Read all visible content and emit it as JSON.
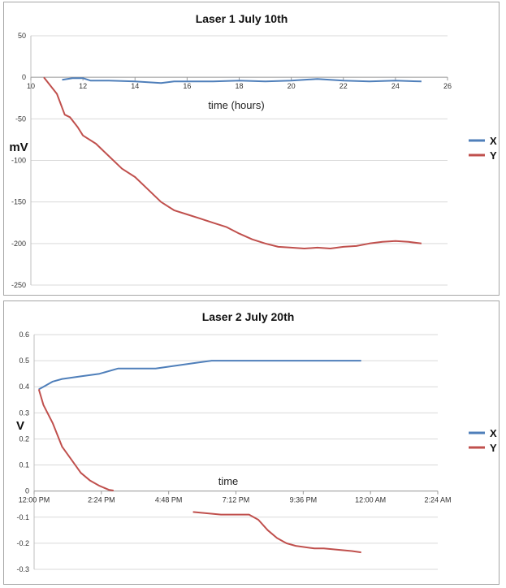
{
  "chart_data": [
    {
      "type": "line",
      "title": "Laser 1 July 10th",
      "ylabel": "mV",
      "xlabel": "time (hours)",
      "ylim": [
        -250,
        50
      ],
      "yticks": [
        50,
        0,
        -50,
        -100,
        -150,
        -200,
        -250
      ],
      "xlim": [
        10,
        26
      ],
      "xticks": [
        10,
        12,
        14,
        16,
        18,
        20,
        22,
        24,
        26
      ],
      "legend": "right",
      "colors": {
        "X": "#4f7fba",
        "Y": "#c0504d"
      },
      "series": [
        {
          "name": "X",
          "x": [
            11.2,
            11.6,
            12.0,
            12.3,
            13.0,
            14.0,
            15.0,
            15.5,
            16.0,
            17.0,
            18.0,
            19.0,
            20.0,
            21.0,
            22.0,
            23.0,
            24.0,
            25.0
          ],
          "y": [
            -3,
            -1,
            -1,
            -4,
            -4,
            -5,
            -7,
            -5,
            -5,
            -5,
            -4,
            -5,
            -4,
            -2,
            -4,
            -5,
            -4,
            -5
          ]
        },
        {
          "name": "Y",
          "x": [
            10.5,
            11.0,
            11.3,
            11.5,
            11.8,
            12.0,
            12.5,
            13.0,
            13.5,
            14.0,
            14.5,
            15.0,
            15.5,
            16.0,
            16.5,
            17.0,
            17.5,
            18.0,
            18.5,
            19.0,
            19.5,
            20.0,
            20.5,
            21.0,
            21.5,
            22.0,
            22.5,
            23.0,
            23.5,
            24.0,
            24.5,
            25.0
          ],
          "y": [
            0,
            -20,
            -45,
            -48,
            -60,
            -70,
            -80,
            -95,
            -110,
            -120,
            -135,
            -150,
            -160,
            -165,
            -170,
            -175,
            -180,
            -188,
            -195,
            -200,
            -204,
            -205,
            -206,
            -205,
            -206,
            -204,
            -203,
            -200,
            -198,
            -197,
            -198,
            -200
          ]
        }
      ]
    },
    {
      "type": "line",
      "title": "Laser 2 July 20th",
      "ylabel": "V",
      "xlabel": "time",
      "ylim": [
        -0.3,
        0.6
      ],
      "yticks": [
        0.6,
        0.5,
        0.4,
        0.3,
        0.2,
        0.1,
        0,
        -0.1,
        -0.2,
        -0.3
      ],
      "xticks": [
        "12:00 PM",
        "2:24 PM",
        "4:48 PM",
        "7:12 PM",
        "9:36 PM",
        "12:00 AM",
        "2:24 AM"
      ],
      "xlim_minutes_after_noon": [
        0,
        864
      ],
      "legend": "right",
      "colors": {
        "X": "#4f7fba",
        "Y": "#c0504d"
      },
      "series": [
        {
          "name": "X",
          "x": [
            10,
            20,
            40,
            60,
            100,
            140,
            180,
            220,
            260,
            300,
            340,
            380,
            420,
            460,
            500,
            560,
            600,
            650,
            700
          ],
          "y": [
            0.39,
            0.4,
            0.42,
            0.43,
            0.44,
            0.45,
            0.47,
            0.47,
            0.47,
            0.48,
            0.49,
            0.5,
            0.5,
            0.5,
            0.5,
            0.5,
            0.5,
            0.5,
            0.5
          ]
        },
        {
          "name": "Y",
          "x": [
            10,
            20,
            40,
            60,
            80,
            100,
            120,
            140,
            160,
            170,
            340,
            370,
            400,
            420,
            440,
            460,
            480,
            500,
            520,
            540,
            560,
            600,
            620,
            650,
            680,
            700
          ],
          "y": [
            0.39,
            0.33,
            0.26,
            0.17,
            0.12,
            0.07,
            0.04,
            0.02,
            0.005,
            0.002,
            -0.08,
            -0.085,
            -0.09,
            -0.09,
            -0.09,
            -0.09,
            -0.11,
            -0.15,
            -0.18,
            -0.2,
            -0.21,
            -0.22,
            -0.22,
            -0.225,
            -0.23,
            -0.235
          ]
        }
      ]
    }
  ]
}
